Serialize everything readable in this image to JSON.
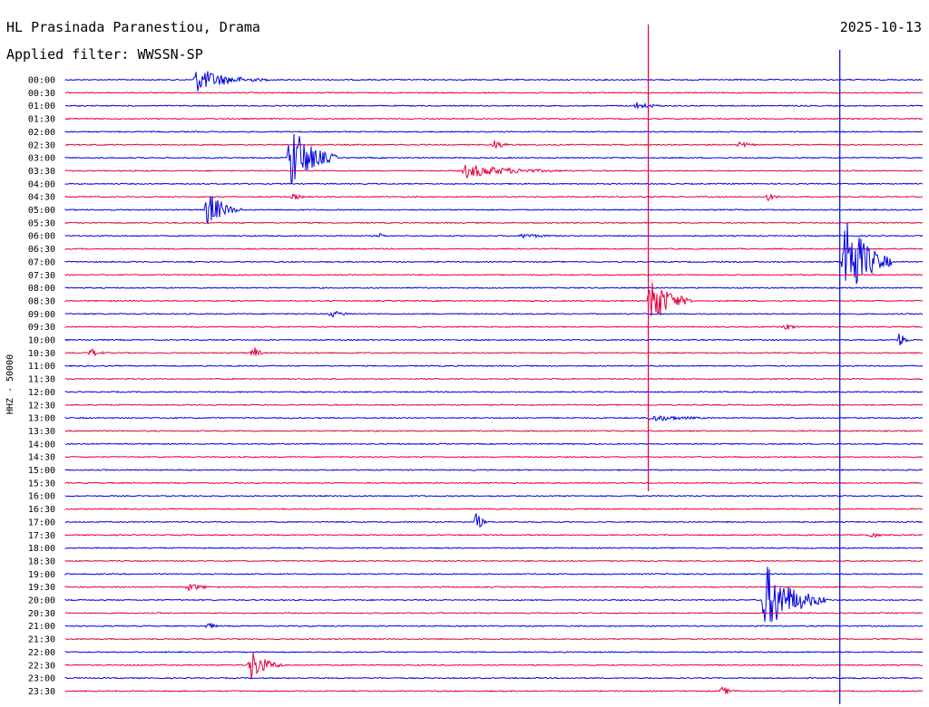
{
  "chart_data": {
    "type": "line",
    "title": "HL Prasinada Paranestiou, Drama",
    "subtitle": "Applied filter: WWSSN-SP",
    "date": "2025-10-13",
    "ylabel": "HHZ - 50000",
    "colors": [
      "#0000e6",
      "#e6003c"
    ],
    "rows": [
      "00:00",
      "00:30",
      "01:00",
      "01:30",
      "02:00",
      "02:30",
      "03:00",
      "03:30",
      "04:00",
      "04:30",
      "05:00",
      "05:30",
      "06:00",
      "06:30",
      "07:00",
      "07:30",
      "08:00",
      "08:30",
      "09:00",
      "09:30",
      "10:00",
      "10:30",
      "11:00",
      "11:30",
      "12:00",
      "12:30",
      "13:00",
      "13:30",
      "14:00",
      "14:30",
      "15:00",
      "15:30",
      "16:00",
      "16:30",
      "17:00",
      "17:30",
      "18:00",
      "18:30",
      "19:00",
      "19:30",
      "20:00",
      "20:30",
      "21:00",
      "21:30",
      "22:00",
      "22:30",
      "23:00",
      "23:30"
    ],
    "x_unit": "minutes",
    "xlim": [
      0,
      30
    ],
    "events": [
      {
        "row": "00:00",
        "minute": 4.6,
        "amplitude": 14,
        "duration": 2.5
      },
      {
        "row": "01:00",
        "minute": 20.0,
        "amplitude": 4,
        "duration": 1.5
      },
      {
        "row": "02:30",
        "minute": 15.0,
        "amplitude": 6,
        "duration": 0.8
      },
      {
        "row": "02:30",
        "minute": 23.6,
        "amplitude": 4,
        "duration": 0.9
      },
      {
        "row": "03:00",
        "minute": 7.9,
        "amplitude": 40,
        "duration": 1.6
      },
      {
        "row": "03:30",
        "minute": 14.0,
        "amplitude": 8,
        "duration": 4.0
      },
      {
        "row": "04:30",
        "minute": 8.0,
        "amplitude": 4,
        "duration": 0.6
      },
      {
        "row": "04:30",
        "minute": 24.6,
        "amplitude": 5,
        "duration": 0.6
      },
      {
        "row": "05:00",
        "minute": 5.0,
        "amplitude": 22,
        "duration": 1.2
      },
      {
        "row": "06:00",
        "minute": 11.0,
        "amplitude": 3,
        "duration": 0.4
      },
      {
        "row": "06:00",
        "minute": 16.0,
        "amplitude": 3,
        "duration": 2.0
      },
      {
        "row": "07:00",
        "minute": 27.3,
        "amplitude": 60,
        "duration": 1.6
      },
      {
        "row": "08:30",
        "minute": 20.5,
        "amplitude": 30,
        "duration": 1.5
      },
      {
        "row": "09:00",
        "minute": 9.3,
        "amplitude": 4,
        "duration": 1.2
      },
      {
        "row": "09:30",
        "minute": 25.2,
        "amplitude": 4,
        "duration": 0.8
      },
      {
        "row": "10:00",
        "minute": 29.2,
        "amplitude": 10,
        "duration": 0.4
      },
      {
        "row": "10:30",
        "minute": 0.9,
        "amplitude": 5,
        "duration": 0.8
      },
      {
        "row": "10:30",
        "minute": 6.6,
        "amplitude": 9,
        "duration": 0.4
      },
      {
        "row": "13:00",
        "minute": 20.5,
        "amplitude": 4,
        "duration": 3.0
      },
      {
        "row": "17:00",
        "minute": 14.4,
        "amplitude": 12,
        "duration": 0.4
      },
      {
        "row": "17:30",
        "minute": 28.2,
        "amplitude": 4,
        "duration": 0.6
      },
      {
        "row": "19:30",
        "minute": 4.3,
        "amplitude": 5,
        "duration": 1.2
      },
      {
        "row": "20:00",
        "minute": 24.5,
        "amplitude": 40,
        "duration": 2.2
      },
      {
        "row": "21:00",
        "minute": 5.0,
        "amplitude": 4,
        "duration": 0.6
      },
      {
        "row": "22:30",
        "minute": 6.5,
        "amplitude": 18,
        "duration": 1.2
      },
      {
        "row": "23:30",
        "minute": 23.0,
        "amplitude": 5,
        "duration": 0.8
      }
    ],
    "spikes": [
      {
        "row": "08:30",
        "minute": 20.4,
        "color": "#e6003c",
        "up": 305,
        "down": 210
      },
      {
        "row": "07:00",
        "minute": 27.1,
        "color": "#0000e6",
        "up": 234,
        "down": 488
      }
    ],
    "grid": false,
    "legend": "none"
  }
}
